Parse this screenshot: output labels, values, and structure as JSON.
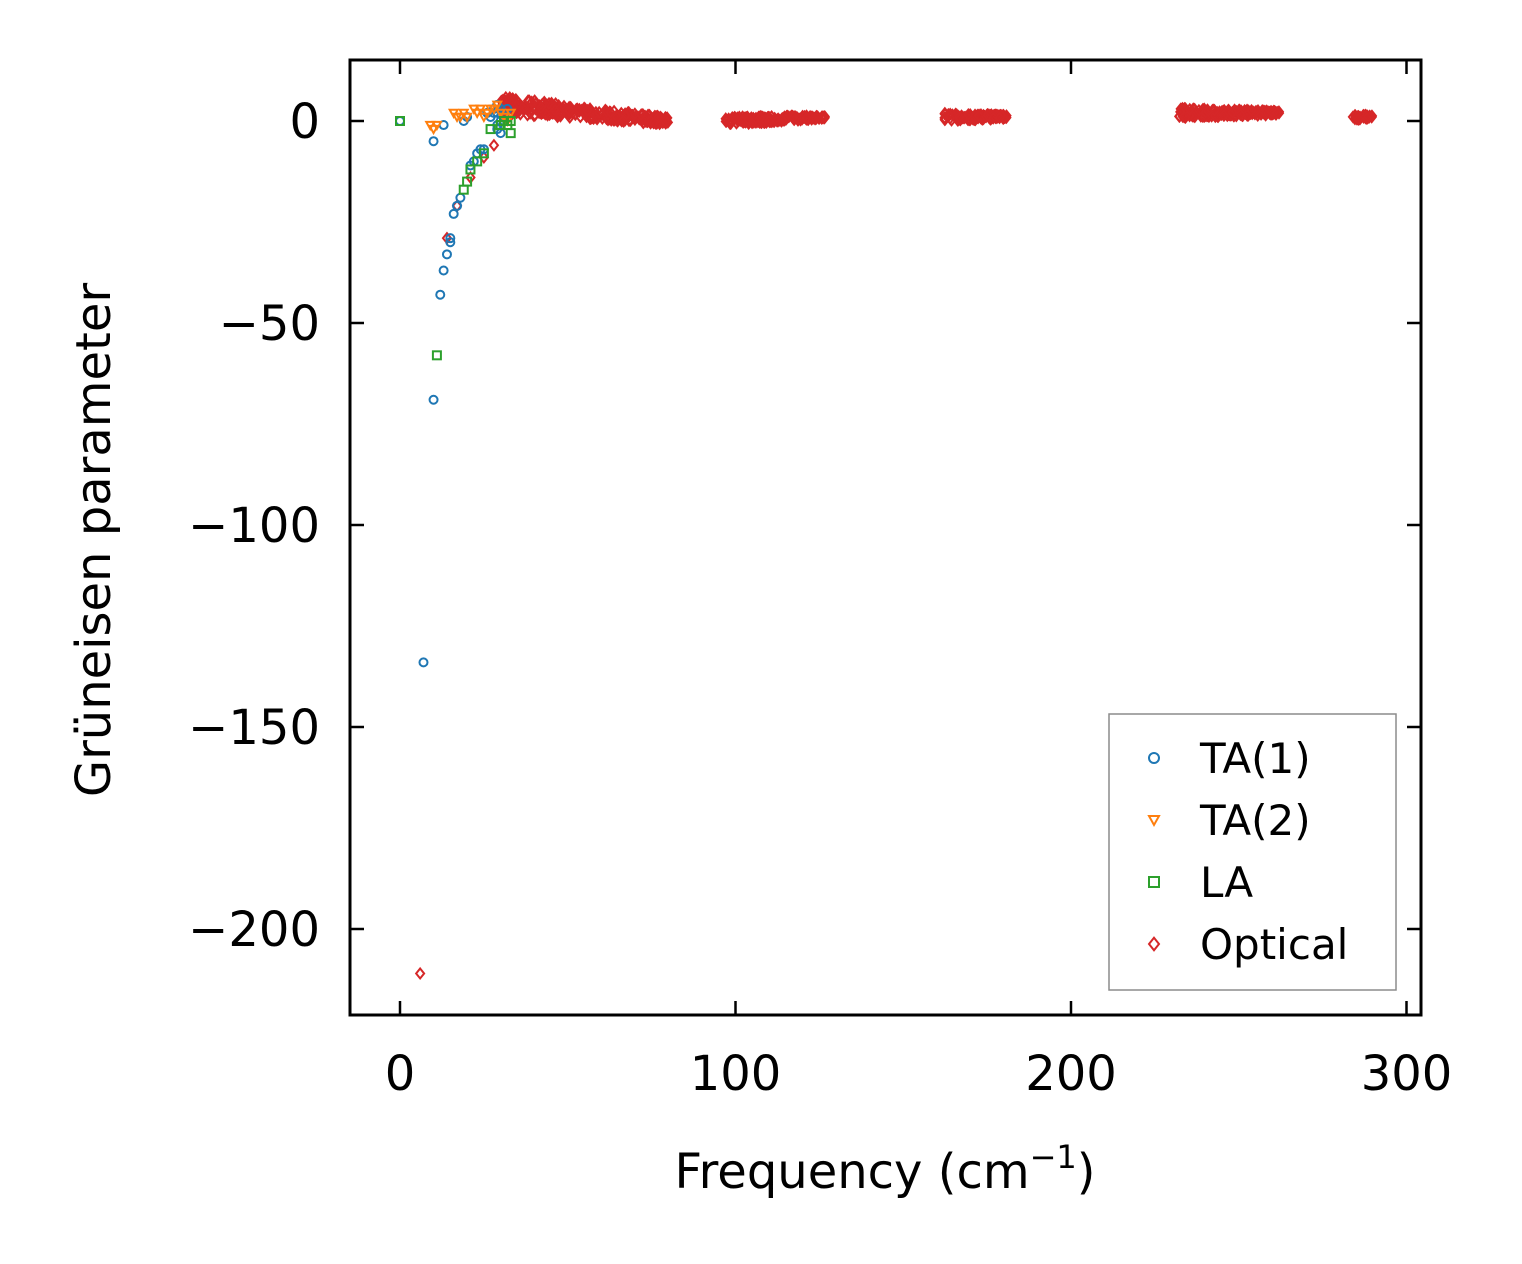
{
  "chart_data": {
    "type": "scatter",
    "title": "",
    "xlabel": "Frequency (cm",
    "xlabel_sup": "−1",
    "xlabel_end": ")",
    "ylabel": "Grüneisen parameter",
    "xlim": [
      -15,
      305
    ],
    "ylim": [
      -222,
      15
    ],
    "xticks": [
      0,
      100,
      200,
      300
    ],
    "yticks": [
      0,
      -50,
      -100,
      -150,
      -200
    ],
    "xtick_labels": [
      "0",
      "100",
      "200",
      "300"
    ],
    "ytick_labels": [
      "0",
      "−50",
      "−100",
      "−150",
      "−200"
    ],
    "legend_position": "lower-right",
    "series": [
      {
        "name": "TA(1)",
        "marker": "circle",
        "color": "#1f77b4",
        "points": [
          [
            0,
            0
          ],
          [
            7,
            -134
          ],
          [
            10,
            -69
          ],
          [
            10,
            -5
          ],
          [
            12,
            -43
          ],
          [
            13,
            -37
          ],
          [
            13,
            -1
          ],
          [
            14,
            -33
          ],
          [
            15,
            -30
          ],
          [
            15,
            -29
          ],
          [
            16,
            -23
          ],
          [
            17,
            -21
          ],
          [
            18,
            -19
          ],
          [
            19,
            0
          ],
          [
            20,
            1
          ],
          [
            21,
            -11
          ],
          [
            22,
            -10
          ],
          [
            23,
            -8
          ],
          [
            24,
            -7
          ],
          [
            25,
            -7
          ],
          [
            26,
            2
          ],
          [
            27,
            1
          ],
          [
            28,
            2
          ],
          [
            28,
            3
          ],
          [
            29,
            2
          ],
          [
            29,
            4
          ],
          [
            29,
            -1
          ],
          [
            29,
            -2
          ],
          [
            30,
            0
          ],
          [
            30,
            3
          ],
          [
            30,
            -3
          ],
          [
            31,
            2
          ],
          [
            31,
            1
          ],
          [
            32,
            3
          ]
        ]
      },
      {
        "name": "TA(2)",
        "marker": "triangle-down",
        "color": "#ff7f0e",
        "points": [
          [
            9,
            -1
          ],
          [
            10,
            -2
          ],
          [
            11,
            -1
          ],
          [
            16,
            2
          ],
          [
            17,
            1
          ],
          [
            18,
            1
          ],
          [
            19,
            2
          ],
          [
            20,
            1
          ],
          [
            22,
            3
          ],
          [
            23,
            2
          ],
          [
            24,
            3
          ],
          [
            25,
            1
          ],
          [
            26,
            2
          ],
          [
            27,
            3
          ],
          [
            28,
            3
          ],
          [
            29,
            4
          ],
          [
            30,
            2
          ],
          [
            31,
            1
          ],
          [
            32,
            0
          ],
          [
            33,
            2
          ]
        ]
      },
      {
        "name": "LA",
        "marker": "square",
        "color": "#2ca02c",
        "points": [
          [
            0,
            0
          ],
          [
            11,
            -58
          ],
          [
            19,
            -17
          ],
          [
            20,
            -15
          ],
          [
            21,
            -12
          ],
          [
            23,
            -10
          ],
          [
            25,
            -8
          ],
          [
            27,
            -2
          ],
          [
            30,
            -1
          ],
          [
            31,
            0
          ],
          [
            32,
            -1
          ],
          [
            33,
            -3
          ],
          [
            33,
            0
          ]
        ]
      },
      {
        "name": "Optical",
        "marker": "diamond",
        "color": "#d62728",
        "points": [
          [
            6,
            -211
          ],
          [
            14,
            -29
          ],
          [
            17,
            -21
          ],
          [
            21,
            -14
          ],
          [
            25,
            -9
          ],
          [
            28,
            -6
          ]
        ],
        "clusters": [
          {
            "x": [
              30,
              80
            ],
            "y": [
              4,
              0
            ],
            "spread": 2.2
          },
          {
            "x": [
              97,
              127
            ],
            "y": [
              0,
              1
            ],
            "spread": 1.0
          },
          {
            "x": [
              162,
              181
            ],
            "y": [
              1,
              1
            ],
            "spread": 1.0
          },
          {
            "x": [
              232,
              262
            ],
            "y": [
              2,
              2
            ],
            "spread": 1.2
          },
          {
            "x": [
              284,
              290
            ],
            "y": [
              1,
              1
            ],
            "spread": 0.8
          }
        ]
      }
    ]
  }
}
